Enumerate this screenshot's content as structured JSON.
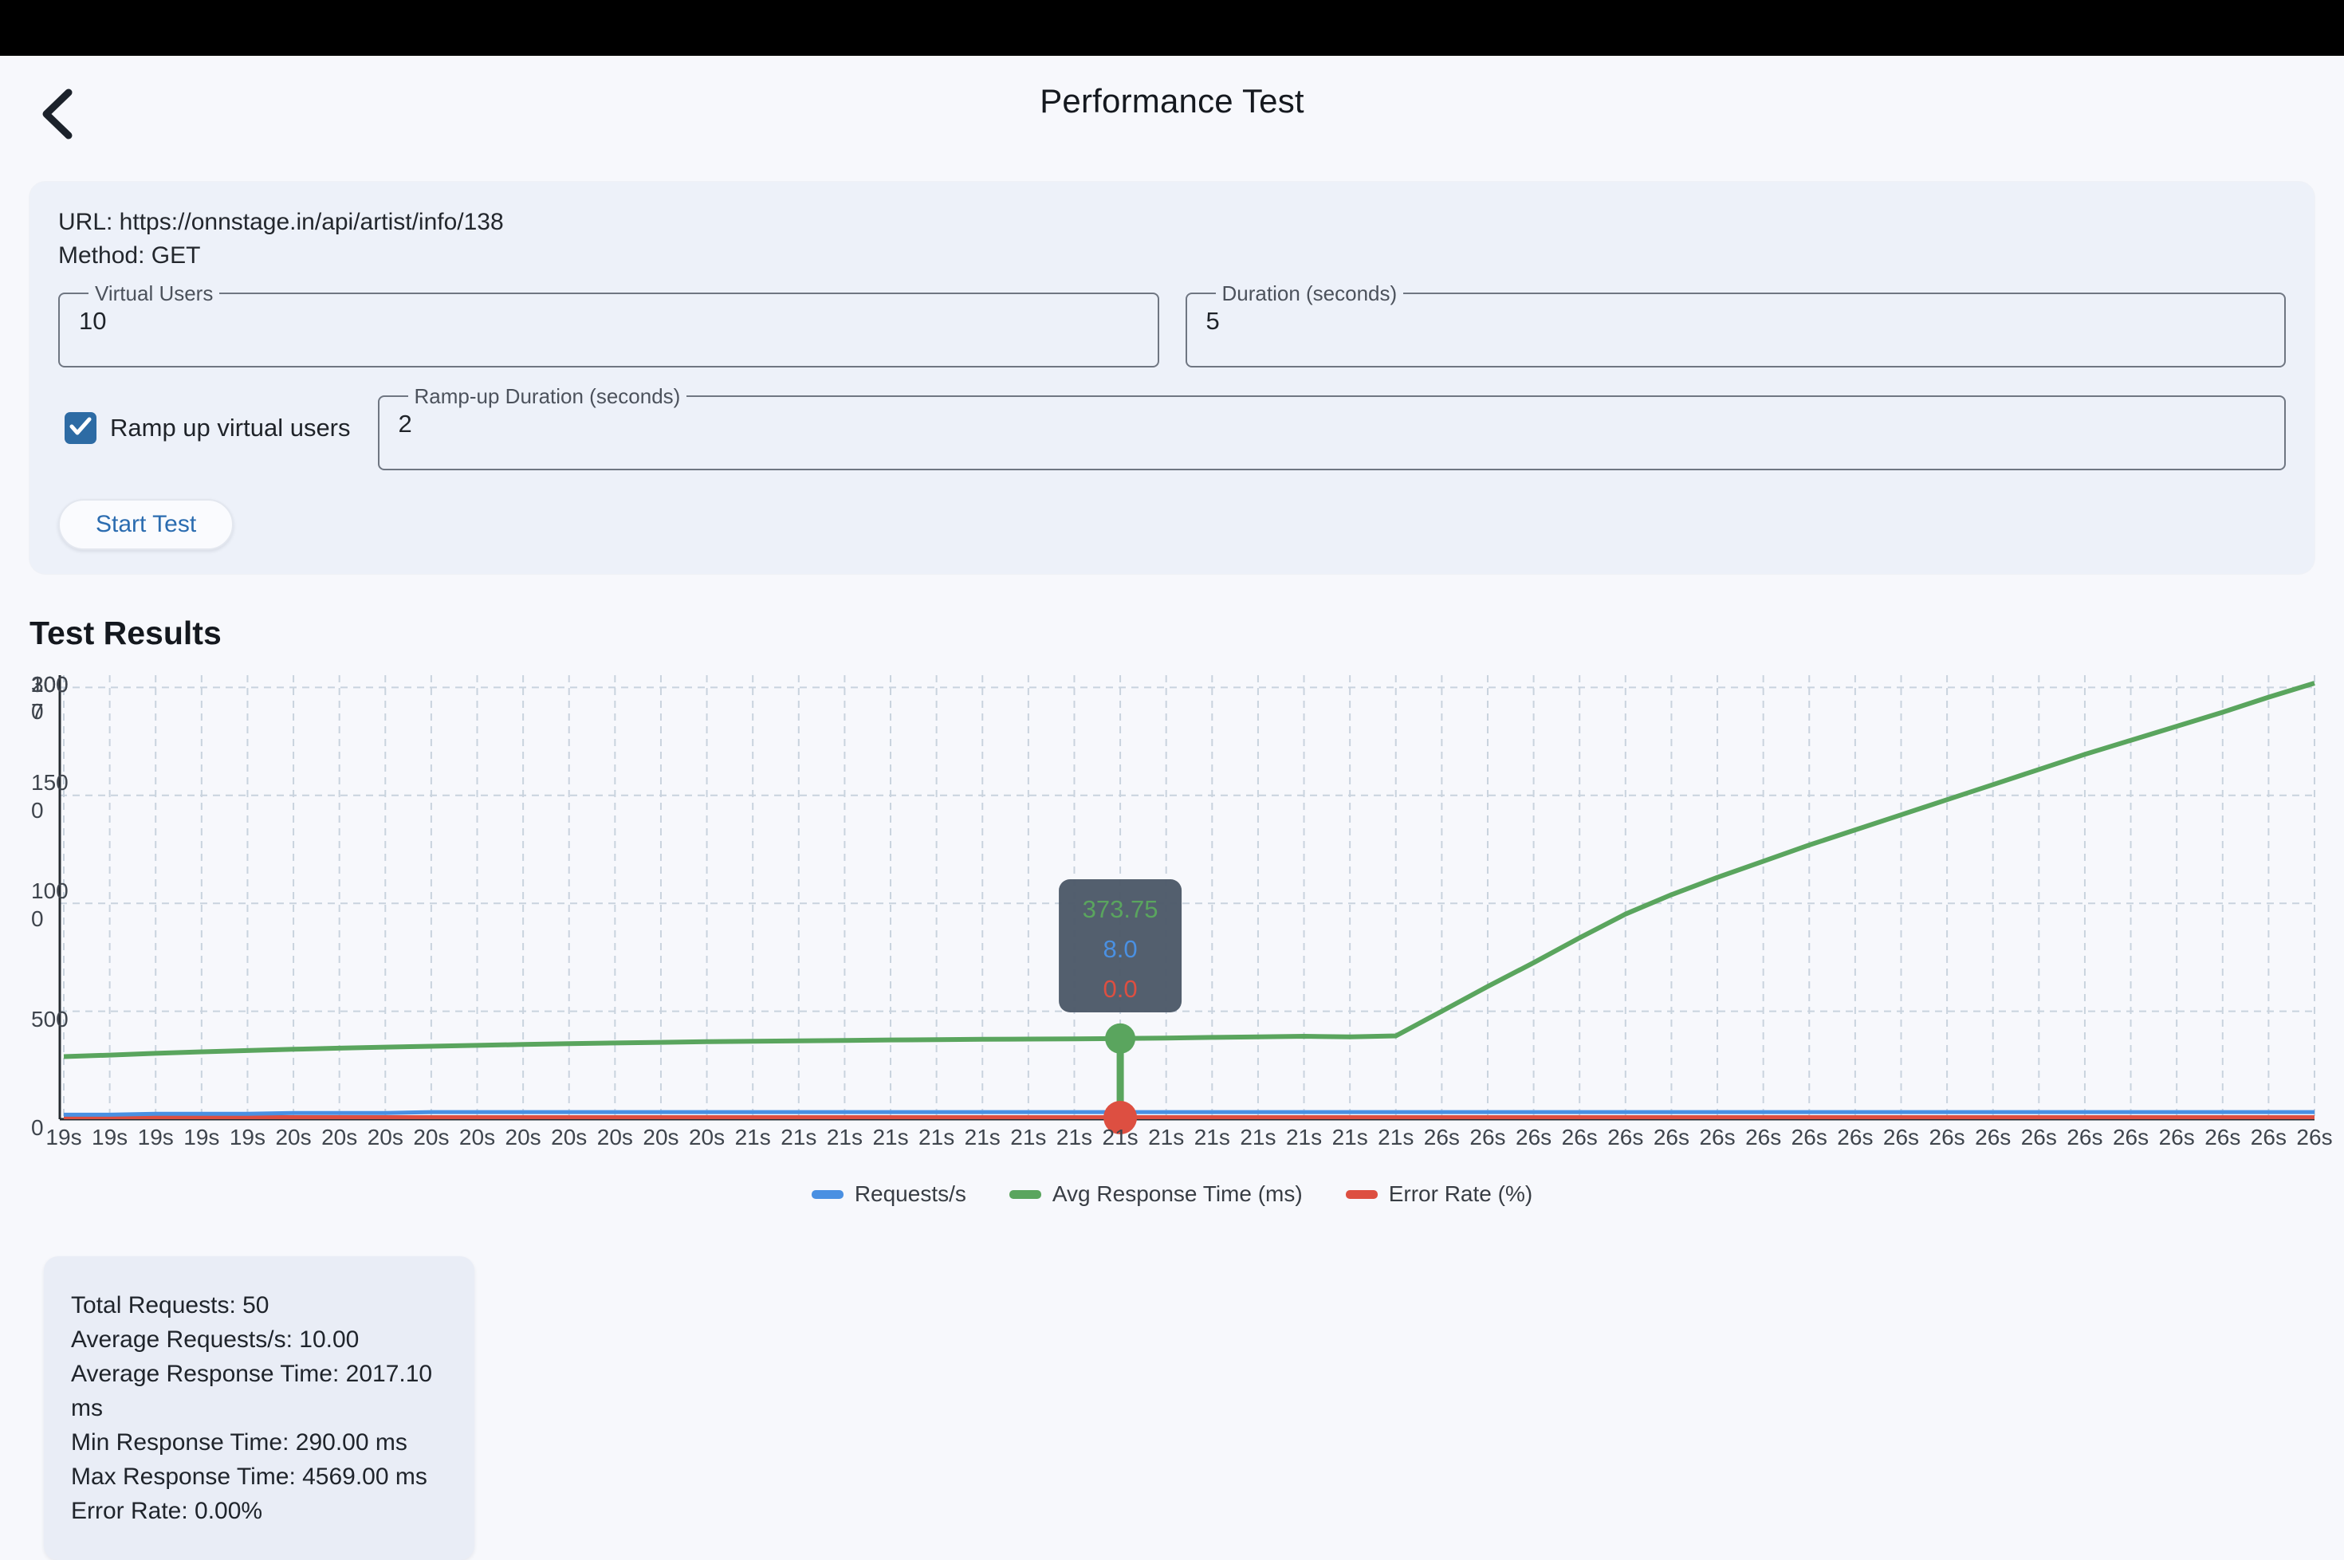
{
  "header": {
    "title": "Performance Test"
  },
  "form": {
    "url_line": "URL: https://onnstage.in/api/artist/info/138",
    "method_line": "Method: GET",
    "virtual_users": {
      "label": "Virtual Users",
      "value": "10"
    },
    "duration": {
      "label": "Duration (seconds)",
      "value": "5"
    },
    "ramp_checkbox_label": "Ramp up virtual users",
    "ramp_checkbox_checked": true,
    "ramp_duration": {
      "label": "Ramp-up Duration (seconds)",
      "value": "2"
    },
    "start_button_label": "Start Test"
  },
  "results": {
    "heading": "Test Results"
  },
  "colors": {
    "checkbox": "#2d6ba4",
    "button_text": "#2b6cb0",
    "tooltip_bg": "#4d5a69",
    "grid": "#c9d3de",
    "axis": "#262b31",
    "tick_text": "#3f454d"
  },
  "chart_data": {
    "type": "line",
    "title": "",
    "xlabel": "",
    "ylabel": "",
    "x_labels": [
      "19s",
      "19s",
      "19s",
      "19s",
      "19s",
      "20s",
      "20s",
      "20s",
      "20s",
      "20s",
      "20s",
      "20s",
      "20s",
      "20s",
      "20s",
      "21s",
      "21s",
      "21s",
      "21s",
      "21s",
      "21s",
      "21s",
      "21s",
      "21s",
      "21s",
      "21s",
      "21s",
      "21s",
      "21s",
      "21s",
      "26s",
      "26s",
      "26s",
      "26s",
      "26s",
      "26s",
      "26s",
      "26s",
      "26s",
      "26s",
      "26s",
      "26s",
      "26s",
      "26s",
      "26s",
      "26s",
      "26s",
      "26s",
      "26s",
      "26s"
    ],
    "series": [
      {
        "name": "Requests/s",
        "color": "#4a90e2",
        "axis_max": 500,
        "values": [
          5,
          5,
          6,
          6,
          6,
          7,
          7,
          7,
          8,
          8,
          8,
          8,
          8,
          8,
          8,
          8,
          8,
          8,
          8,
          8,
          8,
          8,
          8,
          8,
          8,
          8,
          8,
          8,
          8,
          8,
          8,
          8,
          8,
          8,
          8,
          8,
          8,
          8,
          8,
          8,
          8,
          8,
          8,
          8,
          8,
          8,
          8,
          8,
          8,
          8
        ]
      },
      {
        "name": "Avg Response Time (ms)",
        "color": "#5aa55e",
        "axis_max": 2000,
        "values": [
          290,
          297,
          305,
          312,
          318,
          324,
          329,
          334,
          338,
          342,
          346,
          350,
          353,
          356,
          359,
          361,
          363,
          365,
          367,
          368,
          370,
          371,
          372,
          373.75,
          376,
          379,
          381,
          384,
          381,
          386,
          500,
          615,
          725,
          840,
          950,
          1040,
          1120,
          1195,
          1270,
          1340,
          1410,
          1480,
          1550,
          1620,
          1690,
          1755,
          1820,
          1885,
          1955,
          2020
        ]
      },
      {
        "name": "Error Rate (%)",
        "color": "#dd4f41",
        "axis_max": 100,
        "values": [
          0,
          0,
          0,
          0,
          0,
          0,
          0,
          0,
          0,
          0,
          0,
          0,
          0,
          0,
          0,
          0,
          0,
          0,
          0,
          0,
          0,
          0,
          0,
          0,
          0,
          0,
          0,
          0,
          0,
          0,
          0,
          0,
          0,
          0,
          0,
          0,
          0,
          0,
          0,
          0,
          0,
          0,
          0,
          0,
          0,
          0,
          0,
          0,
          0,
          0
        ]
      }
    ],
    "y_ticks_response": [
      "0",
      "500",
      "1000",
      "1500",
      "2000"
    ],
    "y_axis_overlap": {
      "line1": [
        "300",
        "10"
      ],
      "line2": [
        "7"
      ]
    },
    "ylim": [
      0,
      2000
    ],
    "grid": true,
    "legend_position": "bottom",
    "tooltip": {
      "point_index": 23,
      "values": [
        "373.75",
        "8.0",
        "0.0"
      ]
    }
  },
  "summary": {
    "lines": [
      "Total Requests: 50",
      "Average Requests/s: 10.00",
      "Average Response Time: 2017.10 ms",
      "Min Response Time: 290.00 ms",
      "Max Response Time: 4569.00 ms",
      "Error Rate: 0.00%"
    ]
  }
}
